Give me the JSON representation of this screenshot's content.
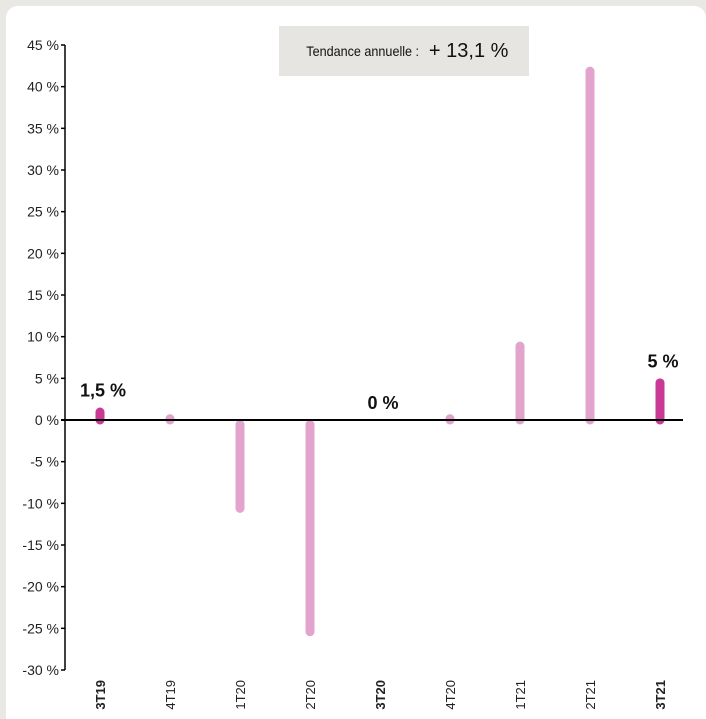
{
  "chart_data": {
    "type": "bar",
    "categories": [
      "3T19",
      "4T19",
      "1T20",
      "2T20",
      "3T20",
      "4T20",
      "1T21",
      "2T21",
      "3T21"
    ],
    "values": [
      1.5,
      0.7,
      -10.6,
      -25.4,
      0.0,
      0.7,
      9.4,
      42.4,
      5.0
    ],
    "highlighted_categories": [
      "3T19",
      "3T20",
      "3T21"
    ],
    "data_labels": [
      {
        "category": "3T19",
        "text": "1,5 %"
      },
      {
        "category": "3T20",
        "text": "0 %"
      },
      {
        "category": "3T21",
        "text": "5 %"
      }
    ],
    "ylim": [
      -30,
      45
    ],
    "yticks": [
      45,
      40,
      35,
      30,
      25,
      20,
      15,
      10,
      5,
      0,
      -5,
      -10,
      -15,
      -20,
      -25,
      -30
    ],
    "ytick_labels": [
      "45 %",
      "40 %",
      "35 %",
      "30 %",
      "25 %",
      "20 %",
      "15 %",
      "10 %",
      "5 %",
      "0 %",
      "-5 %",
      "-10 %",
      "-15 %",
      "-20 %",
      "-25 %",
      "-30 %"
    ],
    "title": "",
    "xlabel": "",
    "ylabel": "",
    "grid": false,
    "colors": {
      "bar": "#e2a3cd",
      "bar_highlight": "#c83a95",
      "axis": "#000000"
    }
  },
  "trend": {
    "label": "Tendance annuelle :",
    "value": "+ 13,1 %"
  }
}
